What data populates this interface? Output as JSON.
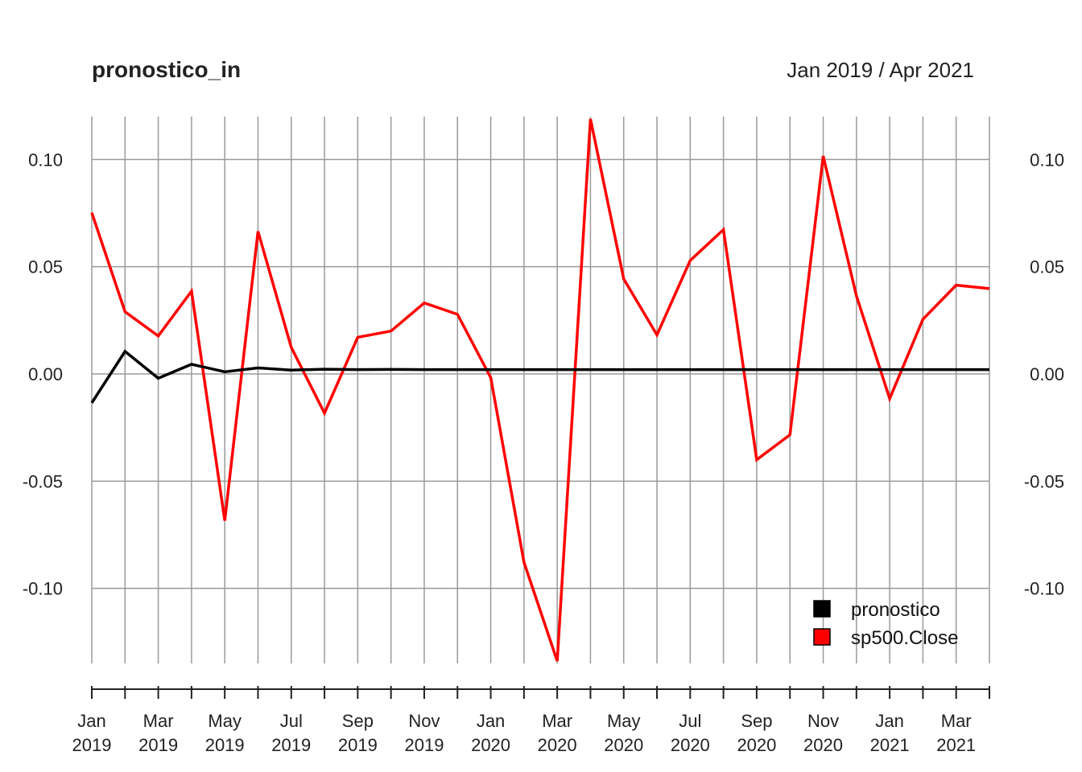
{
  "chart_data": {
    "type": "line",
    "title": "pronostico_in",
    "date_range_label": "Jan 2019 / Apr 2021",
    "xlabel": "",
    "ylabel": "",
    "x": [
      "2019-01",
      "2019-02",
      "2019-03",
      "2019-04",
      "2019-05",
      "2019-06",
      "2019-07",
      "2019-08",
      "2019-09",
      "2019-10",
      "2019-11",
      "2019-12",
      "2020-01",
      "2020-02",
      "2020-03",
      "2020-04",
      "2020-05",
      "2020-06",
      "2020-07",
      "2020-08",
      "2020-09",
      "2020-10",
      "2020-11",
      "2020-12",
      "2021-01",
      "2021-02",
      "2021-03",
      "2021-04"
    ],
    "ylim": [
      -0.135,
      0.12
    ],
    "y_ticks": [
      "0.10",
      "0.05",
      "0.00",
      "-0.05",
      "-0.10"
    ],
    "y_tick_values": [
      0.1,
      0.05,
      0.0,
      -0.05,
      -0.1
    ],
    "x_tick_labels": [
      {
        "month": "Jan",
        "year": "2019",
        "index": 0
      },
      {
        "month": "Mar",
        "year": "2019",
        "index": 2
      },
      {
        "month": "May",
        "year": "2019",
        "index": 4
      },
      {
        "month": "Jul",
        "year": "2019",
        "index": 6
      },
      {
        "month": "Sep",
        "year": "2019",
        "index": 8
      },
      {
        "month": "Nov",
        "year": "2019",
        "index": 10
      },
      {
        "month": "Jan",
        "year": "2020",
        "index": 12
      },
      {
        "month": "Mar",
        "year": "2020",
        "index": 14
      },
      {
        "month": "May",
        "year": "2020",
        "index": 16
      },
      {
        "month": "Jul",
        "year": "2020",
        "index": 18
      },
      {
        "month": "Sep",
        "year": "2020",
        "index": 20
      },
      {
        "month": "Nov",
        "year": "2020",
        "index": 22
      },
      {
        "month": "Jan",
        "year": "2021",
        "index": 24
      },
      {
        "month": "Mar",
        "year": "2021",
        "index": 26
      }
    ],
    "grid": true,
    "legend_position": "bottom-right",
    "series": [
      {
        "name": "pronostico",
        "color": "#000000",
        "values": [
          -0.0135,
          0.0105,
          -0.002,
          0.0045,
          0.001,
          0.0028,
          0.0018,
          0.0022,
          0.002,
          0.0021,
          0.002,
          0.002,
          0.002,
          0.002,
          0.002,
          0.002,
          0.002,
          0.002,
          0.002,
          0.002,
          0.002,
          0.002,
          0.002,
          0.002,
          0.002,
          0.002,
          0.002,
          0.002
        ]
      },
      {
        "name": "sp500.Close",
        "color": "#ff0000",
        "values": [
          0.0752,
          0.029,
          0.0177,
          0.0386,
          -0.0684,
          0.0665,
          0.0124,
          -0.0183,
          0.0171,
          0.02,
          0.0331,
          0.0278,
          -0.0017,
          -0.0878,
          -0.1339,
          0.1189,
          0.0443,
          0.0182,
          0.0529,
          0.0673,
          -0.04,
          -0.0284,
          0.1016,
          0.0364,
          -0.0115,
          0.0255,
          0.0414,
          0.0398
        ]
      }
    ]
  }
}
